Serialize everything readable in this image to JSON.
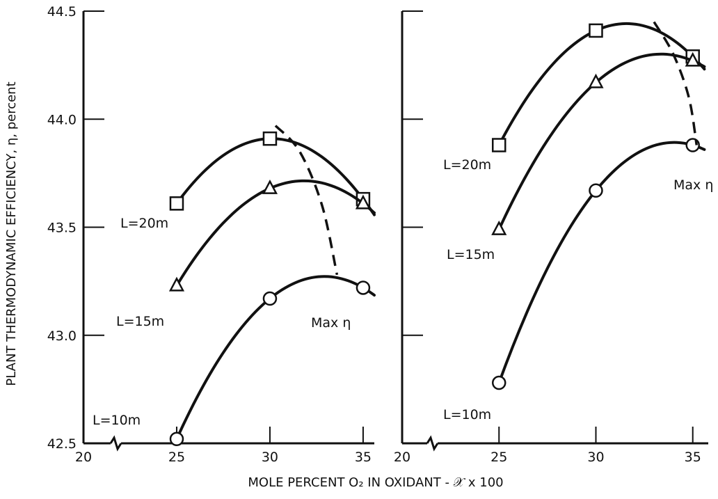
{
  "chart_data": {
    "type": "line",
    "ylabel": "PLANT THERMODYNAMIC EFFICIENCY, η, percent",
    "xlabel": "MOLE PERCENT O₂ IN OXIDANT - 𝒳 x 100",
    "ylim": [
      42.5,
      44.5
    ],
    "yticks": [
      42.5,
      43.0,
      43.5,
      44.0,
      44.5
    ],
    "ytick_labels": [
      "42.5",
      "43.0",
      "43.5",
      "44.0",
      "44.5"
    ],
    "xticks": [
      20,
      25,
      30,
      35
    ],
    "xtick_labels": [
      "20",
      "25",
      "30",
      "35"
    ],
    "panels": [
      {
        "series": [
          {
            "name": "L=20m",
            "x": [
              25,
              30,
              35
            ],
            "y": [
              43.61,
              43.91,
              43.63
            ]
          },
          {
            "name": "L=15m",
            "x": [
              25,
              30,
              35
            ],
            "y": [
              43.23,
              43.68,
              43.61
            ]
          },
          {
            "name": "L=10m",
            "x": [
              25,
              30,
              35
            ],
            "y": [
              42.52,
              43.17,
              43.22
            ]
          }
        ],
        "max_curve": {
          "label": "Max η",
          "x": [
            30.3,
            31.6,
            32.8,
            33.6
          ],
          "y": [
            43.97,
            43.85,
            43.6,
            43.28
          ]
        }
      },
      {
        "series": [
          {
            "name": "L=20m",
            "x": [
              25,
              30,
              35
            ],
            "y": [
              43.88,
              44.41,
              44.29
            ]
          },
          {
            "name": "L=15m",
            "x": [
              25,
              30,
              35
            ],
            "y": [
              43.49,
              44.17,
              44.27
            ]
          },
          {
            "name": "L=10m",
            "x": [
              25,
              30,
              35
            ],
            "y": [
              42.78,
              43.67,
              43.88
            ]
          }
        ],
        "max_curve": {
          "label": "Max η",
          "x": [
            33.0,
            34.0,
            34.8,
            35.2
          ],
          "y": [
            44.45,
            44.3,
            44.1,
            43.88
          ]
        }
      }
    ]
  }
}
